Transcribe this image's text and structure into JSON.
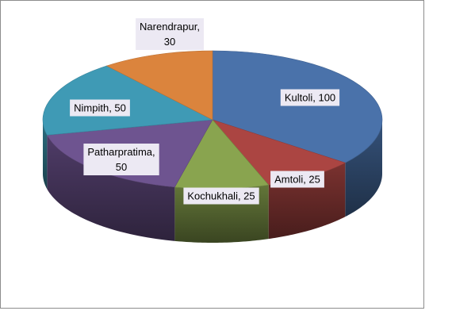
{
  "chart_data": {
    "type": "pie",
    "style": "3d",
    "slices": [
      {
        "label": "Kultoli",
        "value": 100,
        "color": "#4a72aa",
        "text": "Kultoli, 100"
      },
      {
        "label": "Amtoli",
        "value": 25,
        "color": "#ab4542",
        "text": "Amtoli, 25"
      },
      {
        "label": "Kochukhali",
        "value": 25,
        "color": "#89a44f",
        "text": "Kochukhali, 25"
      },
      {
        "label": "Patharpratima",
        "value": 50,
        "color": "#6e5490",
        "text_lines": [
          "Patharpratima,",
          "50"
        ]
      },
      {
        "label": "Nimpith",
        "value": 50,
        "color": "#3f9ab5",
        "text": "Nimpith, 50"
      },
      {
        "label": "Narendrapur",
        "value": 30,
        "color": "#db843d",
        "text_lines": [
          "Narendrapur,",
          "30"
        ]
      }
    ]
  }
}
